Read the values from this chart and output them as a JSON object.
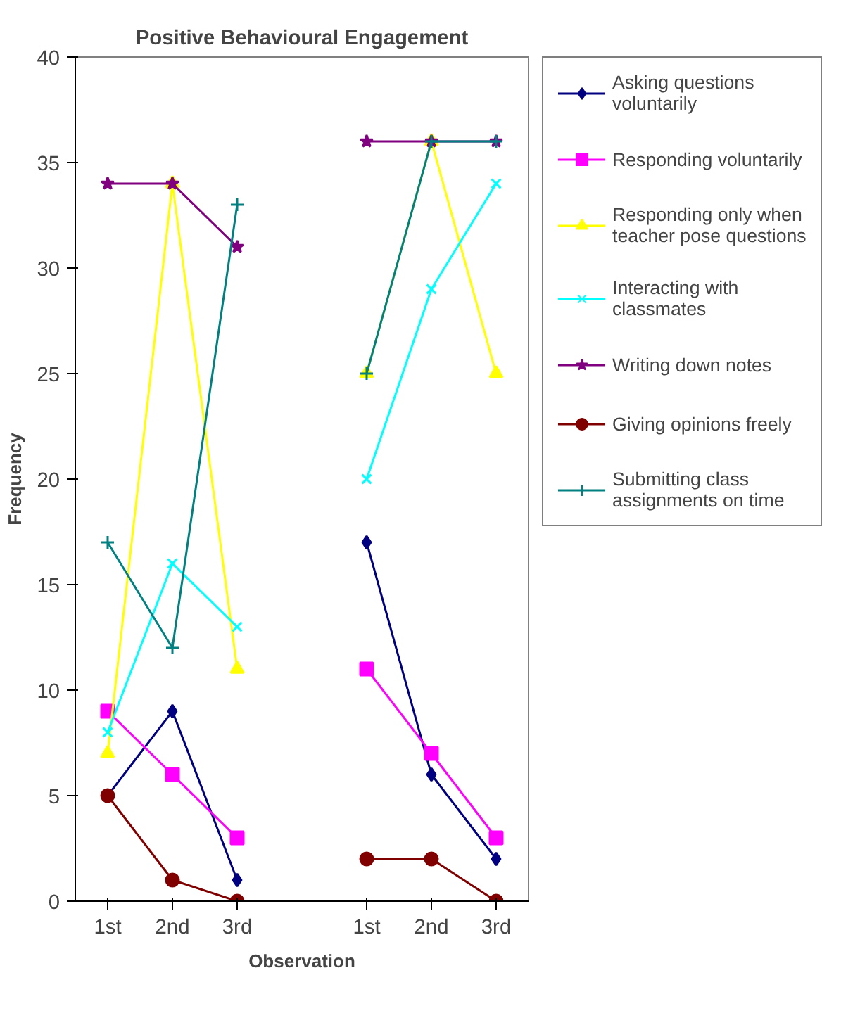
{
  "chart_data": {
    "type": "line",
    "title": "Positive Behavioural Engagement",
    "xlabel": "Observation",
    "ylabel": "Frequency",
    "categories": [
      "1st",
      "2nd",
      "3rd",
      null,
      "1st",
      "2nd",
      "3rd"
    ],
    "ylim": [
      0,
      40
    ],
    "yticks": [
      0,
      5,
      10,
      15,
      20,
      25,
      30,
      35,
      40
    ],
    "grid": false,
    "legend": "right",
    "series": [
      {
        "name": "Asking questions voluntarily",
        "color": "#000080",
        "marker": "diamond",
        "values": [
          5,
          9,
          1,
          null,
          17,
          6,
          2
        ]
      },
      {
        "name": "Responding voluntarily",
        "color": "#ff00ff",
        "marker": "square",
        "values": [
          9,
          6,
          3,
          null,
          11,
          7,
          3
        ]
      },
      {
        "name": "Responding only when teacher pose questions",
        "color": "#ffff00",
        "marker": "triangle",
        "values": [
          7,
          34,
          11,
          null,
          25,
          36,
          25
        ]
      },
      {
        "name": "Interacting with classmates",
        "color": "#00ffff",
        "marker": "x",
        "values": [
          8,
          16,
          13,
          null,
          20,
          29,
          34
        ]
      },
      {
        "name": "Writing down notes",
        "color": "#800080",
        "marker": "star",
        "values": [
          34,
          34,
          31,
          null,
          36,
          36,
          36
        ]
      },
      {
        "name": "Giving opinions freely",
        "color": "#800000",
        "marker": "circle",
        "values": [
          5,
          1,
          0,
          null,
          2,
          2,
          0
        ]
      },
      {
        "name": "Submitting class assignments on time",
        "color": "#008080",
        "marker": "cross",
        "values": [
          17,
          12,
          33,
          null,
          25,
          36,
          36
        ]
      }
    ]
  }
}
